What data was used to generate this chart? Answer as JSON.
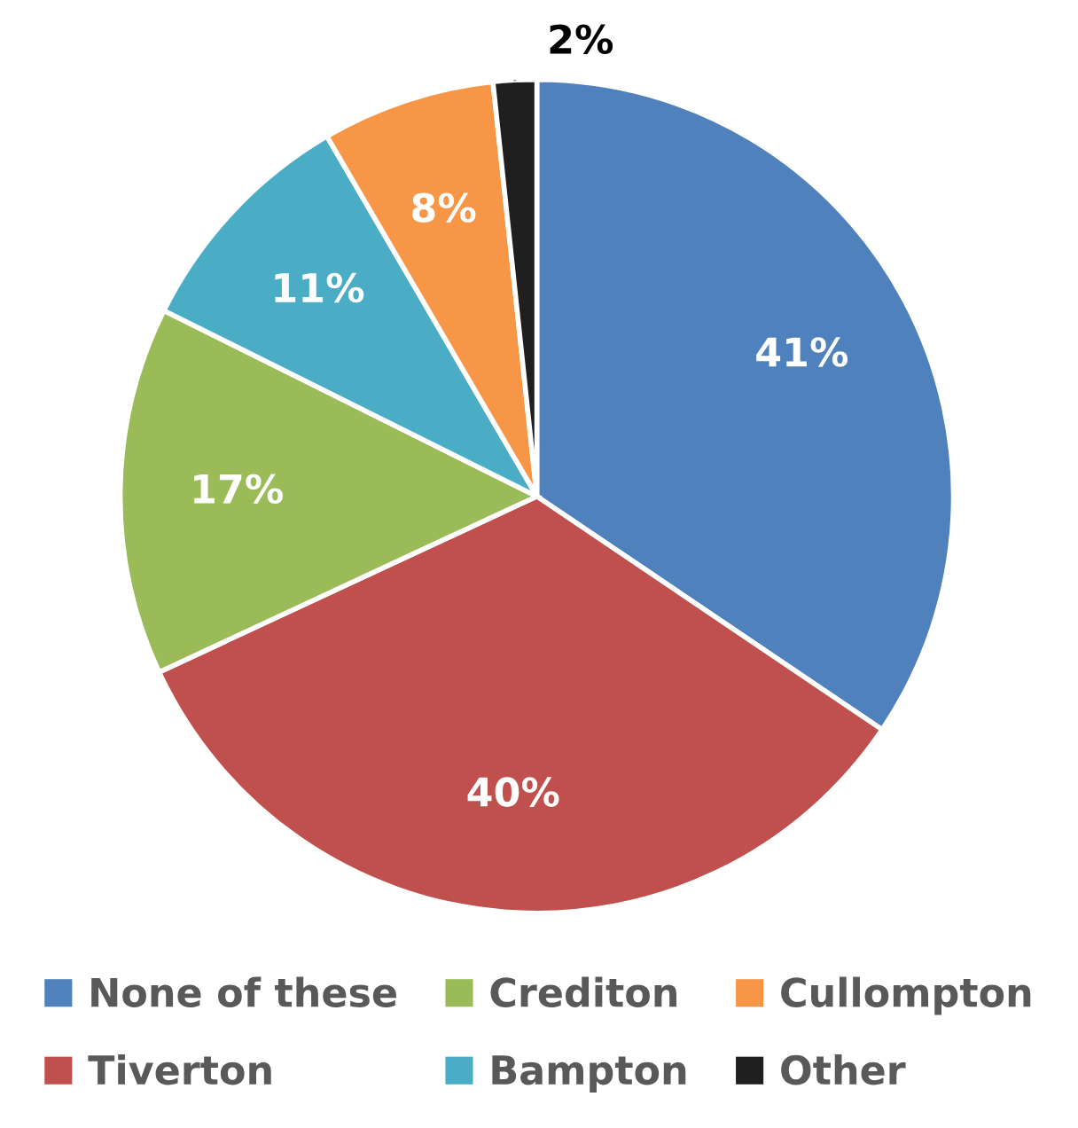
{
  "chart_data": {
    "type": "pie",
    "categories": [
      "None of these",
      "Tiverton",
      "Crediton",
      "Bampton",
      "Cullompton",
      "Other"
    ],
    "values": [
      41,
      40,
      17,
      11,
      8,
      2
    ],
    "value_labels": [
      "41%",
      "40%",
      "17%",
      "11%",
      "8%",
      "2%"
    ],
    "colors": [
      "#4f81bd",
      "#c0504d",
      "#9bbb59",
      "#4bacc6",
      "#f79646",
      "#1f1f1f"
    ],
    "legend": "bottom"
  }
}
